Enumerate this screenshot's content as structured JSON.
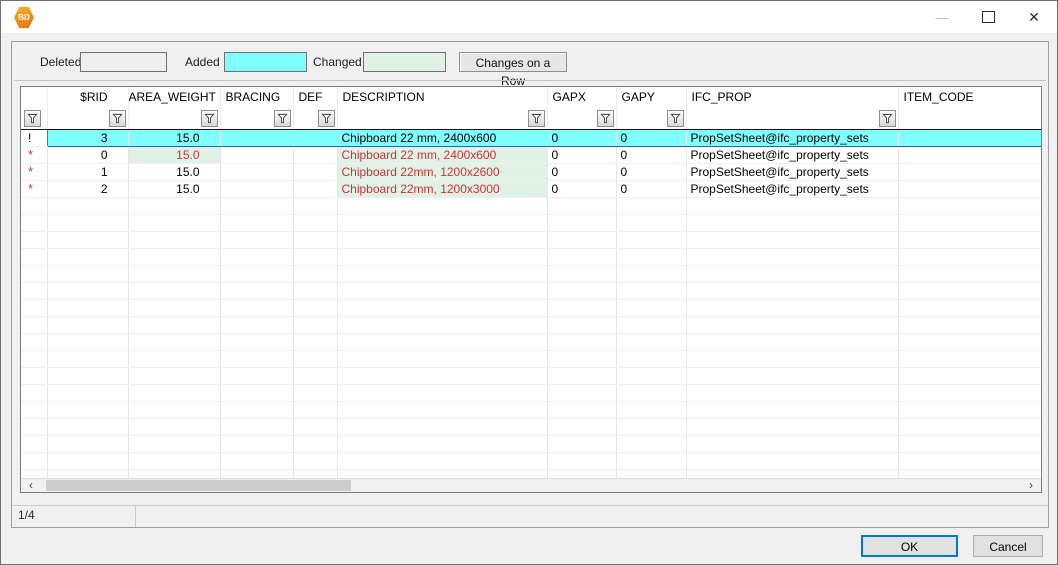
{
  "window": {
    "icon_label": "BD"
  },
  "titlebar": {
    "minimize_icon": "—",
    "close_icon": "✕"
  },
  "legend": {
    "deleted_label": "Deleted",
    "added_label": "Added",
    "changed_label": "Changed",
    "changes_on_row_button": "Changes on a Row",
    "colors": {
      "deleted": "#efefef",
      "added": "#80ffff",
      "changed": "#e2f1e6"
    }
  },
  "grid": {
    "columns": [
      "",
      "$RID",
      "AREA_WEIGHT",
      "BRACING",
      "DEF",
      "DESCRIPTION",
      "GAPX",
      "GAPY",
      "IFC_PROP",
      "ITEM_CODE"
    ],
    "rows": [
      {
        "indicator": "!",
        "state": "added-selected",
        "cells": [
          "3",
          "15.0",
          "",
          "",
          "Chipboard 22 mm, 2400x600",
          "0",
          "0",
          "PropSetSheet@ifc_property_sets",
          ""
        ]
      },
      {
        "indicator": "*",
        "state": "changed",
        "cells": [
          "0",
          "15.0",
          "",
          "",
          "Chipboard 22 mm, 2400x600",
          "0",
          "0",
          "PropSetSheet@ifc_property_sets",
          ""
        ]
      },
      {
        "indicator": "*",
        "state": "changed",
        "cells": [
          "1",
          "15.0",
          "",
          "",
          "Chipboard 22mm, 1200x2600",
          "0",
          "0",
          "PropSetSheet@ifc_property_sets",
          ""
        ]
      },
      {
        "indicator": "*",
        "state": "changed",
        "cells": [
          "2",
          "15.0",
          "",
          "",
          "Chipboard 22mm, 1200x3000",
          "0",
          "0",
          "PropSetSheet@ifc_property_sets",
          ""
        ]
      }
    ],
    "scrollbar": {
      "left_arrow": "‹",
      "right_arrow": "›"
    }
  },
  "statusbar": {
    "row_position": "1/4"
  },
  "footer": {
    "ok_button": "OK",
    "cancel_button": "Cancel"
  },
  "colors": {
    "added_row": "#80ffff",
    "changed_cell_bg": "#e2f1e6",
    "changed_text": "#cc3333",
    "selection_border": "#3a78c2",
    "default_button_border": "#0078d7"
  }
}
